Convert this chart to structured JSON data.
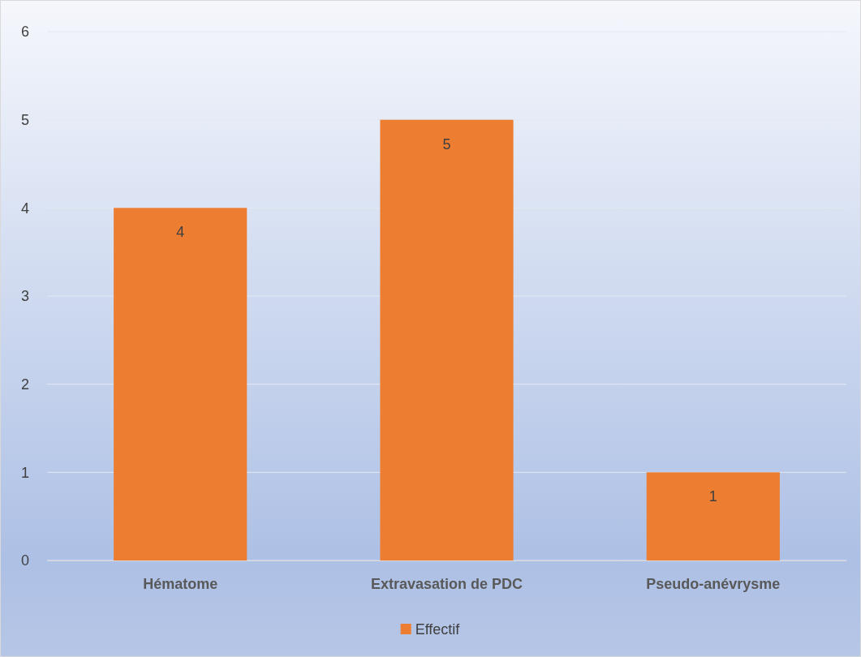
{
  "chart_data": {
    "type": "bar",
    "categories": [
      "Hématome",
      "Extravasation de PDC",
      "Pseudo-anévrysme"
    ],
    "series": [
      {
        "name": "Effectif",
        "color": "#ed7d31",
        "values": [
          4,
          5,
          1
        ]
      }
    ],
    "ylim": [
      0,
      6
    ],
    "yticks": [
      0,
      1,
      2,
      3,
      4,
      5,
      6
    ],
    "grid": "y",
    "legend": "bottom",
    "data_labels": true
  }
}
